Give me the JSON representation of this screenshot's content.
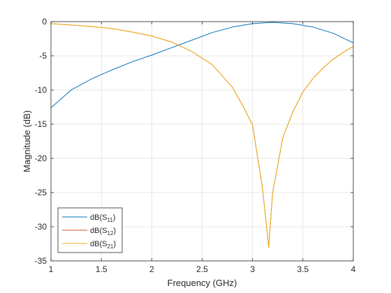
{
  "chart_data": {
    "type": "line",
    "title": "",
    "xlabel": "Frequency (GHz)",
    "ylabel": "Magnitude (dB)",
    "xlim": [
      1,
      4
    ],
    "ylim": [
      -35,
      0
    ],
    "xticks": [
      1,
      1.5,
      2,
      2.5,
      3,
      3.5,
      4
    ],
    "xtick_labels": [
      "1",
      "1.5",
      "2",
      "2.5",
      "3",
      "3.5",
      "4"
    ],
    "yticks": [
      0,
      -5,
      -10,
      -15,
      -20,
      -25,
      -30,
      -35
    ],
    "ytick_labels": [
      "0",
      "-5",
      "-10",
      "-15",
      "-20",
      "-25",
      "-30",
      "-35"
    ],
    "grid": true,
    "legend_position": "bottom-left",
    "series": [
      {
        "name": "dB(S11)",
        "name_main": "dB(S",
        "name_sub": "11",
        "name_end": ")",
        "color": "#0072BD",
        "x": [
          1,
          1.2,
          1.4,
          1.6,
          1.8,
          2.0,
          2.2,
          2.4,
          2.6,
          2.8,
          3.0,
          3.2,
          3.4,
          3.6,
          3.8,
          4.0
        ],
        "y": [
          -12.6,
          -10.0,
          -8.4,
          -7.1,
          -5.9,
          -4.9,
          -3.8,
          -2.7,
          -1.6,
          -0.8,
          -0.3,
          -0.1,
          -0.3,
          -0.8,
          -1.7,
          -3.1
        ]
      },
      {
        "name": "dB(S12)",
        "name_main": "dB(S",
        "name_sub": "12",
        "name_end": ")",
        "color": "#D95319",
        "x": [
          1,
          1.2,
          1.4,
          1.6,
          1.8,
          2.0,
          2.2,
          2.4,
          2.6,
          2.8,
          2.9,
          3.0,
          3.1,
          3.16,
          3.2,
          3.3,
          3.4,
          3.5,
          3.6,
          3.7,
          3.8,
          3.9,
          4.0
        ],
        "y": [
          -0.3,
          -0.5,
          -0.7,
          -1.0,
          -1.5,
          -2.1,
          -3.0,
          -4.4,
          -6.3,
          -9.6,
          -12.2,
          -15.1,
          -24.5,
          -33.0,
          -25.0,
          -17.0,
          -13.2,
          -10.3,
          -8.3,
          -6.8,
          -5.5,
          -4.5,
          -3.6
        ]
      },
      {
        "name": "dB(S21)",
        "name_main": "dB(S",
        "name_sub": "21",
        "name_end": ")",
        "color": "#EDB120",
        "x": [
          1,
          1.2,
          1.4,
          1.6,
          1.8,
          2.0,
          2.2,
          2.4,
          2.6,
          2.8,
          2.9,
          3.0,
          3.1,
          3.16,
          3.2,
          3.3,
          3.4,
          3.5,
          3.6,
          3.7,
          3.8,
          3.9,
          4.0
        ],
        "y": [
          -0.3,
          -0.5,
          -0.7,
          -1.0,
          -1.5,
          -2.1,
          -3.0,
          -4.4,
          -6.3,
          -9.6,
          -12.2,
          -15.1,
          -24.5,
          -33.0,
          -25.0,
          -17.0,
          -13.2,
          -10.3,
          -8.3,
          -6.8,
          -5.5,
          -4.5,
          -3.6
        ]
      }
    ]
  }
}
